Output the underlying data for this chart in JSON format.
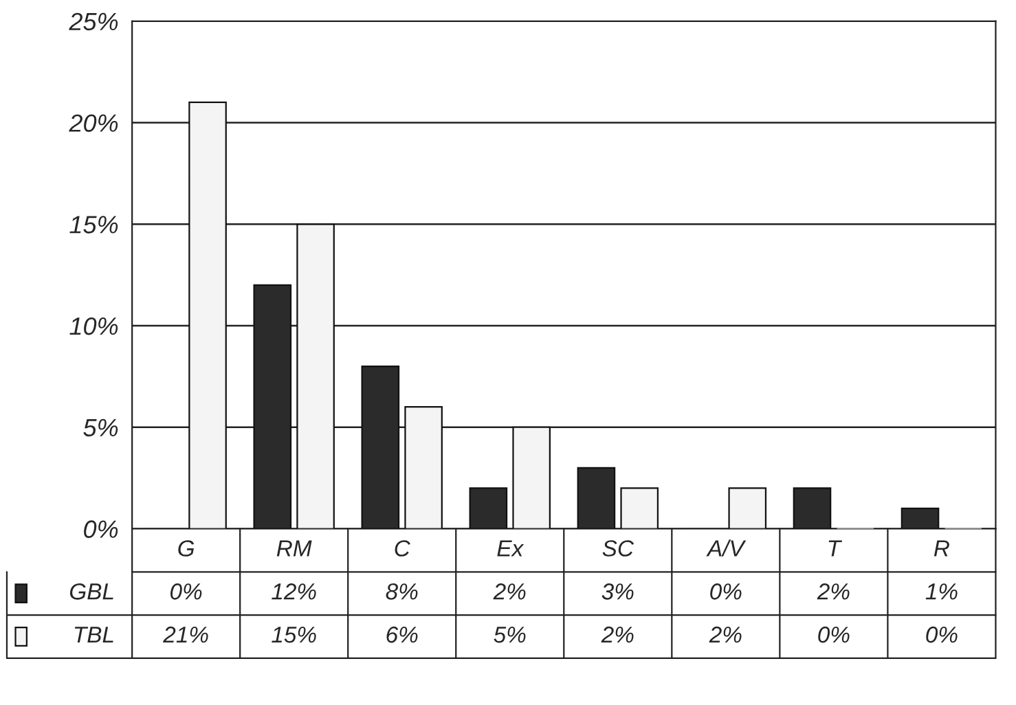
{
  "chart_data": {
    "type": "bar",
    "categories": [
      "G",
      "RM",
      "C",
      "Ex",
      "SC",
      "A/V",
      "T",
      "R"
    ],
    "series": [
      {
        "name": "GBL",
        "color": "#2b2b2b",
        "values": [
          0,
          12,
          8,
          2,
          3,
          0,
          2,
          1
        ],
        "value_labels": [
          "0%",
          "12%",
          "8%",
          "2%",
          "3%",
          "0%",
          "2%",
          "1%"
        ]
      },
      {
        "name": "TBL",
        "color": "#f4f4f4",
        "values": [
          21,
          15,
          6,
          5,
          2,
          2,
          0,
          0
        ],
        "value_labels": [
          "21%",
          "15%",
          "6%",
          "5%",
          "2%",
          "2%",
          "0%",
          "0%"
        ]
      }
    ],
    "ylim": [
      0,
      25
    ],
    "yticks": [
      {
        "value": 0,
        "label": "0%"
      },
      {
        "value": 5,
        "label": "5%"
      },
      {
        "value": 10,
        "label": "10%"
      },
      {
        "value": 15,
        "label": "15%"
      },
      {
        "value": 20,
        "label": "20%"
      },
      {
        "value": 25,
        "label": "25%"
      }
    ],
    "grid": "y",
    "legend": "bottom"
  }
}
